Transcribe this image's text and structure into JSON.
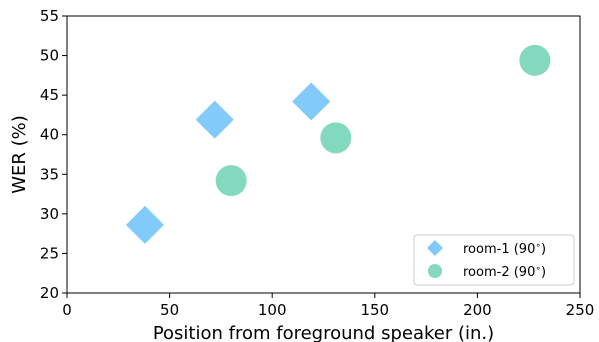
{
  "chart_data": {
    "type": "scatter",
    "title": "",
    "xlabel": "Position from foreground speaker (in.)",
    "ylabel": "WER (%)",
    "xlim": [
      0,
      250
    ],
    "ylim": [
      20,
      55
    ],
    "xticks": [
      0,
      50,
      100,
      150,
      200,
      250
    ],
    "yticks": [
      20,
      25,
      30,
      35,
      40,
      45,
      50,
      55
    ],
    "grid": false,
    "legend_position": "bottom-right",
    "series": [
      {
        "name": "room-1 (90$^\\circ$)",
        "label_text": "room-1 (90",
        "label_suffix": ")",
        "marker": "diamond",
        "color": "#82CAFA",
        "points": [
          {
            "x": 38,
            "y": 28.6
          },
          {
            "x": 72,
            "y": 41.9
          },
          {
            "x": 119,
            "y": 44.2
          }
        ]
      },
      {
        "name": "room-2 (90$^\\circ$)",
        "label_text": "room-2 (90",
        "label_suffix": ")",
        "marker": "circle",
        "color": "#83D9BE",
        "points": [
          {
            "x": 80,
            "y": 34.2
          },
          {
            "x": 131,
            "y": 39.6
          },
          {
            "x": 228,
            "y": 49.4
          }
        ]
      }
    ]
  }
}
